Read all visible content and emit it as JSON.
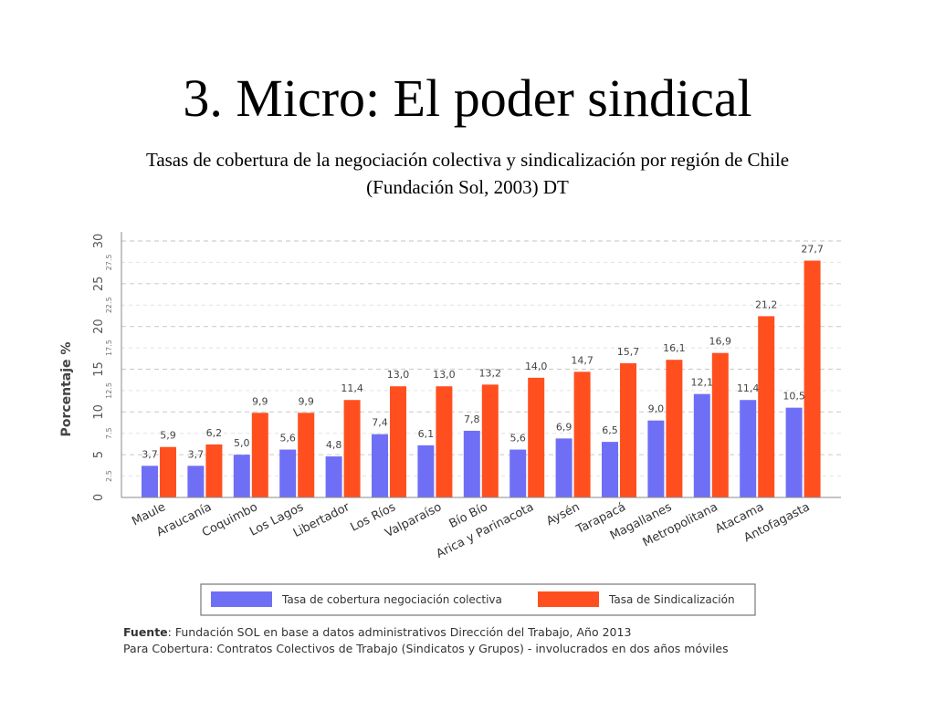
{
  "slide": {
    "title": "3. Micro: El poder sindical",
    "subtitle_line1": "Tasas de cobertura de la negociación colectiva y sindicalización por región de Chile",
    "subtitle_line2": "(Fundación Sol, 2003) DT"
  },
  "chart_data": {
    "type": "bar",
    "ylabel": "Porcentaje %",
    "ylim": [
      0,
      30
    ],
    "major_ticks": [
      "0",
      "5",
      "10",
      "15",
      "20",
      "25",
      "30"
    ],
    "minor_ticks": [
      "2.5",
      "7.5",
      "12.5",
      "17.5",
      "22.5",
      "27.5"
    ],
    "grid": true,
    "categories": [
      "Maule",
      "Araucanía",
      "Coquimbo",
      "Los Lagos",
      "Libertador",
      "Los Ríos",
      "Valparaíso",
      "Bío Bío",
      "Arica y Parinacota",
      "Aysén",
      "Tarapacá",
      "Magallanes",
      "Metropolitana",
      "Atacama",
      "Antofagasta"
    ],
    "series": [
      {
        "name": "Tasa de cobertura negociación colectiva",
        "color": "#6f6ff6",
        "values": [
          3.7,
          3.7,
          5.0,
          5.6,
          4.8,
          7.4,
          6.1,
          7.8,
          5.6,
          6.9,
          6.5,
          9.0,
          12.1,
          11.4,
          10.5
        ],
        "labels": [
          "3,7",
          "3,7",
          "5,0",
          "5,6",
          "4,8",
          "7,4",
          "6,1",
          "7,8",
          "5,6",
          "6,9",
          "6,5",
          "9,0",
          "12,1",
          "11,4",
          "10,5"
        ]
      },
      {
        "name": "Tasa de Sindicalización",
        "color": "#ff4f1f",
        "values": [
          5.9,
          6.2,
          9.9,
          9.9,
          11.4,
          13.0,
          13.0,
          13.2,
          14.0,
          14.7,
          15.7,
          16.1,
          16.9,
          21.2,
          27.7
        ],
        "labels": [
          "5,9",
          "6,2",
          "9,9",
          "9,9",
          "11,4",
          "13,0",
          "13,0",
          "13,2",
          "14,0",
          "14,7",
          "15,7",
          "16,1",
          "16,9",
          "21,2",
          "27,7"
        ]
      }
    ],
    "legend_position": "bottom",
    "source_label": "Fuente",
    "source_line1": ": Fundación SOL en base a datos administrativos Dirección del Trabajo, Año 2013",
    "source_line2": "Para Cobertura: Contratos Colectivos de Trabajo (Sindicatos y Grupos) - involucrados en dos años móviles"
  }
}
